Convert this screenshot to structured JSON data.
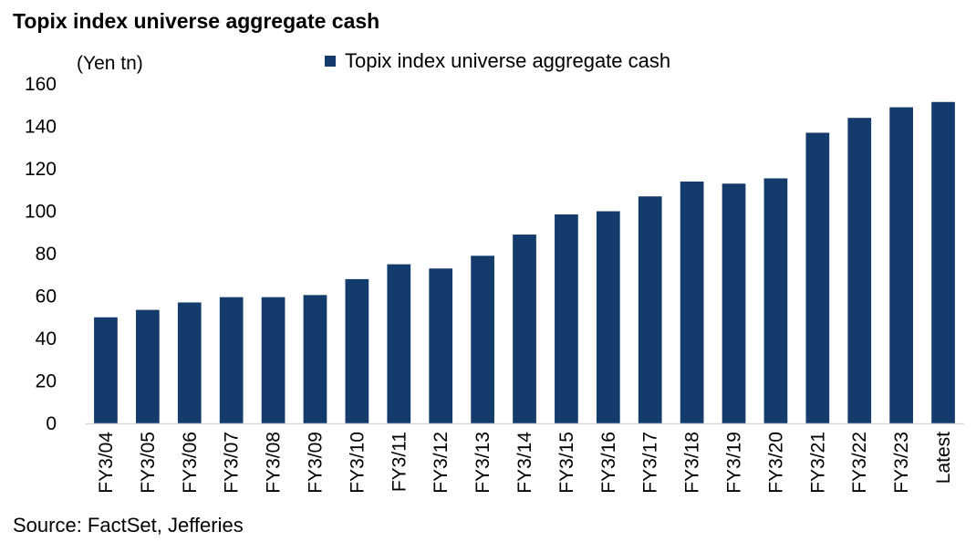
{
  "title": "Topix index universe aggregate cash",
  "unit_label": "(Yen tn)",
  "source": "Source: FactSet, Jefferies",
  "colors": {
    "bar": "#133C6C",
    "axis": "#D9D9D9",
    "text": "#000000"
  },
  "chart_data": {
    "type": "bar",
    "title": "Topix index universe aggregate cash",
    "xlabel": "",
    "ylabel": "(Yen tn)",
    "categories": [
      "FY3/04",
      "FY3/05",
      "FY3/06",
      "FY3/07",
      "FY3/08",
      "FY3/09",
      "FY3/10",
      "FY3/11",
      "FY3/12",
      "FY3/13",
      "FY3/14",
      "FY3/15",
      "FY3/16",
      "FY3/17",
      "FY3/18",
      "FY3/19",
      "FY3/20",
      "FY3/21",
      "FY3/22",
      "FY3/23",
      "Latest"
    ],
    "series": [
      {
        "name": "Topix index universe aggregate cash",
        "values": [
          50,
          53.5,
          57,
          59.5,
          59.5,
          60.5,
          68,
          75,
          73,
          79,
          89,
          98.5,
          100,
          107,
          114,
          113,
          115.5,
          137,
          144,
          149,
          151.5
        ]
      }
    ],
    "ylim": [
      0,
      160
    ],
    "yticks": [
      0,
      20,
      40,
      60,
      80,
      100,
      120,
      140,
      160
    ],
    "grid": false,
    "legend_position": "top-center"
  }
}
